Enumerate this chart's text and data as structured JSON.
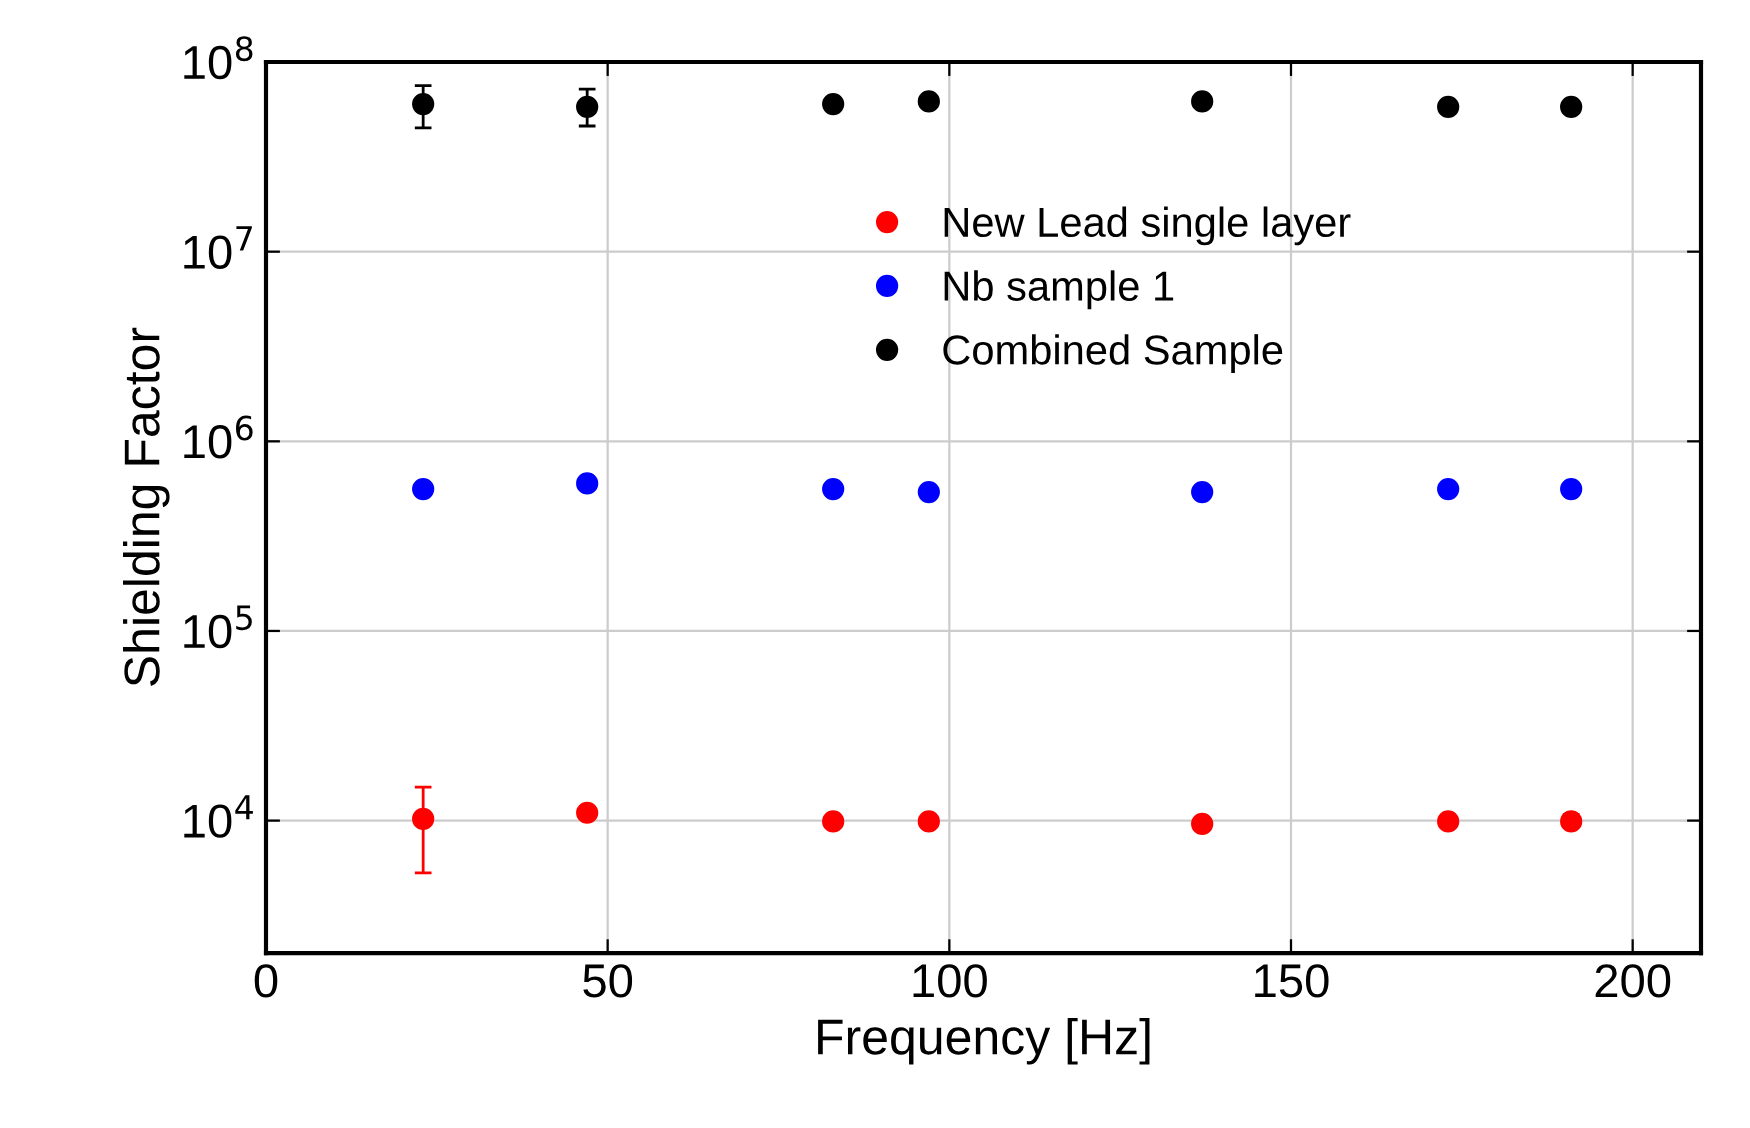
{
  "chart_data": {
    "type": "scatter",
    "xlabel": "Frequency [Hz]",
    "ylabel": "Shielding Factor",
    "log": "y",
    "grid": true,
    "legend": "top",
    "marker": "circle",
    "x": [
      23,
      47,
      83,
      97,
      137,
      173,
      191
    ],
    "xlim": [
      0,
      210
    ],
    "xticks": [
      0,
      50,
      100,
      150,
      200
    ],
    "ylim": [
      2000,
      100000000
    ],
    "yticks": [
      {
        "value": 10000,
        "label": "10$^{4}$"
      },
      {
        "value": 100000,
        "label": "10$^{5}$"
      },
      {
        "value": 1000000,
        "label": "10$^{6}$"
      },
      {
        "value": 10000000,
        "label": "10$^{7}$"
      },
      {
        "value": 100000000,
        "label": "10$^{8}$"
      }
    ],
    "series": [
      {
        "name": "New Lead single layer",
        "color": "#ff0000",
        "values": [
          10200,
          11000,
          9900,
          9900,
          9600,
          9900,
          9900
        ],
        "errors": [
          [
            5300,
            15000
          ],
          [
            10500,
            11600
          ],
          null,
          [
            9400,
            10500
          ],
          null,
          [
            9400,
            10500
          ],
          [
            9300,
            10800
          ]
        ]
      },
      {
        "name": "Nb sample 1",
        "color": "#0000ff",
        "values": [
          560000,
          600000,
          560000,
          540000,
          540000,
          560000,
          560000
        ]
      },
      {
        "name": "Combined Sample",
        "color": "#000000",
        "values": [
          60000000,
          58000000,
          60000000,
          62000000,
          62000000,
          58000000,
          58000000
        ],
        "errors": [
          [
            45000000,
            75000000
          ],
          [
            46000000,
            72000000
          ],
          null,
          null,
          null,
          [
            55000000,
            62000000
          ],
          null
        ]
      }
    ]
  }
}
